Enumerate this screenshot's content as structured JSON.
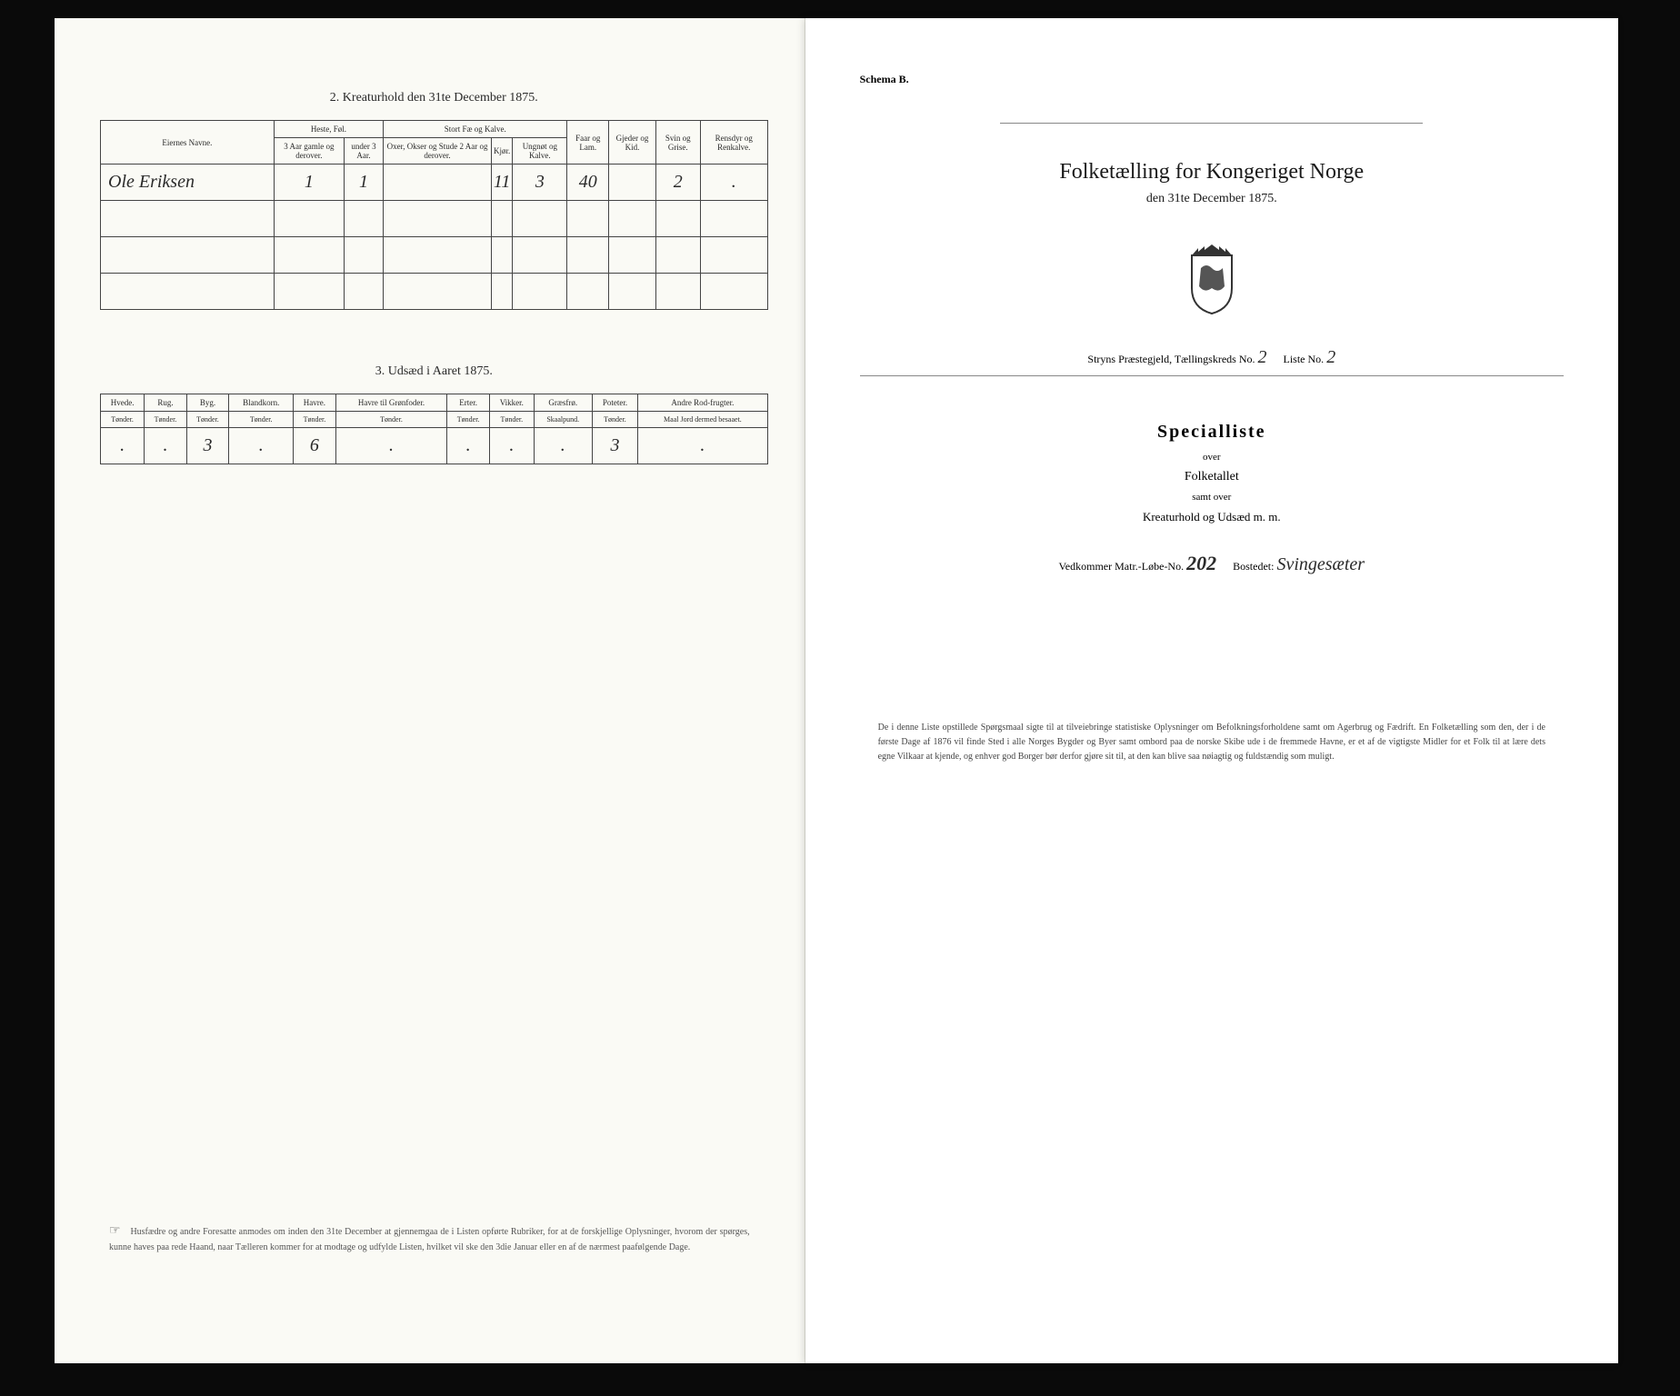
{
  "left": {
    "table1": {
      "title": "2. Kreaturhold den 31te December 1875.",
      "col_owner": "Eiernes Navne.",
      "group_heste": "Heste, Føl.",
      "group_stort": "Stort Fæ og Kalve.",
      "col_h1": "3 Aar gamle og derover.",
      "col_h2": "under 3 Aar.",
      "col_s1": "Oxer, Okser og Stude 2 Aar og derover.",
      "col_s2": "Kjør.",
      "col_s3": "Ungnøt og Kalve.",
      "col_faar": "Faar og Lam.",
      "col_gjeder": "Gjeder og Kid.",
      "col_svin": "Svin og Grise.",
      "col_rensdyr": "Rensdyr og Renkalve.",
      "row1_name": "Ole Eriksen",
      "row1": {
        "h1": "1",
        "h2": "1",
        "s1": "",
        "s2": "11",
        "s3": "3",
        "faar": "40",
        "gjeder": "",
        "svin": "2",
        "ren": "."
      }
    },
    "table2": {
      "title": "3. Udsæd i Aaret 1875.",
      "cols": [
        "Hvede.",
        "Rug.",
        "Byg.",
        "Blandkorn.",
        "Havre.",
        "Havre til Grønfoder.",
        "Erter.",
        "Vikker.",
        "Græsfrø.",
        "Poteter.",
        "Andre Rod-frugter."
      ],
      "units": [
        "Tønder.",
        "Tønder.",
        "Tønder.",
        "Tønder.",
        "Tønder.",
        "Tønder.",
        "Tønder.",
        "Tønder.",
        "Skaalpund.",
        "Tønder.",
        "Maal Jord dermed besaaet."
      ],
      "row": [
        ".",
        ".",
        "3",
        ".",
        "6",
        ".",
        ".",
        ".",
        ".",
        "3",
        "."
      ]
    },
    "footer": "Husfædre og andre Foresatte anmodes om inden den 31te December at gjennemgaa de i Listen opførte Rubriker, for at de forskjellige Oplysninger, hvorom der spørges, kunne haves paa rede Haand, naar Tælleren kommer for at modtage og udfylde Listen, hvilket vil ske den 3die Januar eller en af de nærmest paafølgende Dage."
  },
  "right": {
    "schema": "Schema B.",
    "main_title": "Folketælling for Kongeriget Norge",
    "subtitle": "den 31te December 1875.",
    "district_prefix": "Stryns Præstegjeld, Tællingskreds No.",
    "district_no": "2",
    "liste_label": "Liste No.",
    "liste_no": "2",
    "spec_title": "Specialliste",
    "spec_over": "over",
    "spec_folketallet": "Folketallet",
    "spec_samt": "samt over",
    "spec_kreat": "Kreaturhold og Udsæd m. m.",
    "matr_label": "Vedkommer Matr.-Løbe-No.",
    "matr_no": "202",
    "bostedet_label": "Bostedet:",
    "bostedet_val": "Svingesæter",
    "footer": "De i denne Liste opstillede Spørgsmaal sigte til at tilveiebringe statistiske Oplysninger om Befolkningsforholdene samt om Agerbrug og Fædrift. En Folketælling som den, der i de første Dage af 1876 vil finde Sted i alle Norges Bygder og Byer samt ombord paa de norske Skibe ude i de fremmede Havne, er et af de vigtigste Midler for et Folk til at lære dets egne Vilkaar at kjende, og enhver god Borger bør derfor gjøre sit til, at den kan blive saa nøiagtig og fuldstændig som muligt."
  }
}
